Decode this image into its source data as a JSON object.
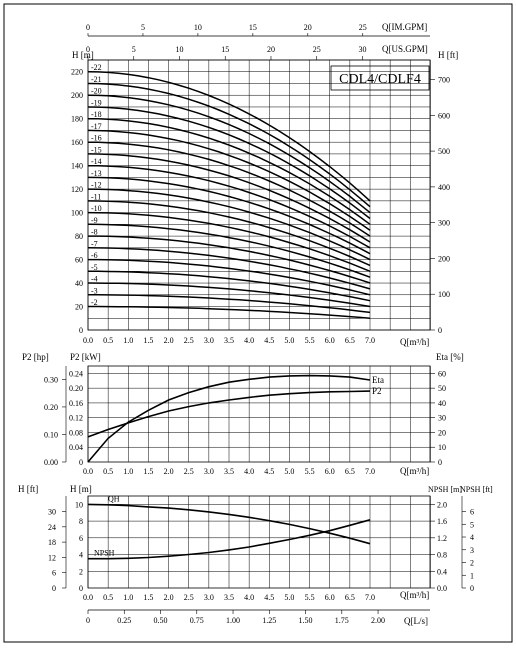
{
  "top_axes": {
    "im_gpm": {
      "label": "Q[IM.GPM]",
      "ticks": [
        0,
        5,
        10,
        15,
        20,
        25
      ]
    },
    "us_gpm": {
      "label": "Q[US.GPM]",
      "ticks": [
        0,
        5,
        10,
        15,
        20,
        25,
        30
      ]
    }
  },
  "chart_data": [
    {
      "type": "line",
      "title": "CDL4/CDLF4",
      "xlabel": "Q[m³/h]",
      "ylabel": "H [m]",
      "y2label": "H [ft]",
      "xlim": [
        0,
        7.0
      ],
      "ylim": [
        0,
        230
      ],
      "x_ticks": [
        "0.0",
        "0.5",
        "1.0",
        "1.5",
        "2.0",
        "2.5",
        "3.0",
        "3.5",
        "4.0",
        "4.5",
        "5.0",
        "5.5",
        "6.0",
        "6.5",
        "7.0"
      ],
      "y_ticks": [
        0,
        20,
        40,
        60,
        80,
        100,
        120,
        140,
        160,
        180,
        200,
        220
      ],
      "y2_ticks": [
        0,
        100,
        200,
        300,
        400,
        500,
        600,
        700
      ],
      "grid": true,
      "curve_form": {
        "x": [
          0,
          7.0
        ],
        "head_fraction_at_end": [
          1.0,
          0.5
        ],
        "shape": "quadratic"
      },
      "series": [
        {
          "name": "-2",
          "h0": 20
        },
        {
          "name": "-3",
          "h0": 30
        },
        {
          "name": "-4",
          "h0": 40
        },
        {
          "name": "-5",
          "h0": 50
        },
        {
          "name": "-6",
          "h0": 60
        },
        {
          "name": "-7",
          "h0": 70
        },
        {
          "name": "-8",
          "h0": 80
        },
        {
          "name": "-9",
          "h0": 90
        },
        {
          "name": "-10",
          "h0": 100
        },
        {
          "name": "-11",
          "h0": 110
        },
        {
          "name": "-12",
          "h0": 120
        },
        {
          "name": "-13",
          "h0": 130
        },
        {
          "name": "-14",
          "h0": 140
        },
        {
          "name": "-15",
          "h0": 150
        },
        {
          "name": "-16",
          "h0": 160
        },
        {
          "name": "-17",
          "h0": 170
        },
        {
          "name": "-18",
          "h0": 180
        },
        {
          "name": "-19",
          "h0": 190
        },
        {
          "name": "-20",
          "h0": 200
        },
        {
          "name": "-21",
          "h0": 210
        },
        {
          "name": "-22",
          "h0": 220
        }
      ]
    },
    {
      "type": "line",
      "xlabel": "Q[m³/h]",
      "ylabel_hp": "P2 [hp]",
      "ylabel_kw": "P2 [kW]",
      "y2label": "Eta [%]",
      "xlim": [
        0,
        7.0
      ],
      "ylim_kw": [
        0,
        0.26
      ],
      "ylim_eta": [
        0,
        65
      ],
      "x_ticks": [
        "0.0",
        "0.5",
        "1.0",
        "1.5",
        "2.0",
        "2.5",
        "3.0",
        "3.5",
        "4.0",
        "4.5",
        "5.0",
        "5.5",
        "6.0",
        "6.5",
        "7.0"
      ],
      "hp_ticks": [
        "0.00",
        "0.10",
        "0.20",
        "0.30"
      ],
      "kw_ticks": [
        "0",
        "0.04",
        "0.08",
        "0.12",
        "0.16",
        "0.20",
        "0.24"
      ],
      "eta_ticks": [
        "0",
        "10",
        "20",
        "30",
        "40",
        "50",
        "60"
      ],
      "grid": true,
      "series": [
        {
          "name": "Eta",
          "axis": "eta",
          "x": [
            0,
            0.5,
            1.0,
            1.5,
            2.0,
            2.5,
            3.0,
            3.5,
            4.0,
            4.5,
            5.0,
            5.5,
            6.0,
            6.5,
            7.0
          ],
          "y": [
            0,
            16,
            27,
            35,
            42,
            47,
            51,
            54,
            56,
            57.5,
            58.3,
            58.5,
            58.3,
            57.5,
            55.5
          ]
        },
        {
          "name": "P2",
          "axis": "kw",
          "x": [
            0,
            0.5,
            1.0,
            1.5,
            2.0,
            2.5,
            3.0,
            3.5,
            4.0,
            4.5,
            5.0,
            5.5,
            6.0,
            6.5,
            7.0
          ],
          "y": [
            0.068,
            0.088,
            0.106,
            0.123,
            0.138,
            0.15,
            0.16,
            0.168,
            0.175,
            0.181,
            0.185,
            0.188,
            0.19,
            0.191,
            0.192
          ]
        }
      ]
    },
    {
      "type": "line",
      "xlabel": "Q[m³/h]",
      "x2label": "Q[L/s]",
      "ylabel_ft": "H [ft]",
      "ylabel_m": "H [m]",
      "y2label_m": "NPSH [m]",
      "y2label_ft": "NPSH [ft]",
      "xlim": [
        0,
        7.0
      ],
      "ylim_m": [
        0,
        11
      ],
      "ylim_npsh": [
        0,
        2.2
      ],
      "x_ticks": [
        "0.0",
        "0.5",
        "1.0",
        "1.5",
        "2.0",
        "2.5",
        "3.0",
        "3.5",
        "4.0",
        "4.5",
        "5.0",
        "5.5",
        "6.0",
        "6.5",
        "7.0"
      ],
      "ls_ticks": [
        "0",
        "0.25",
        "0.50",
        "0.75",
        "1.00",
        "1.25",
        "1.50",
        "1.75",
        "2.00"
      ],
      "ft_ticks": [
        "0",
        "6",
        "12",
        "18",
        "24",
        "30"
      ],
      "m_ticks": [
        "0",
        "2",
        "4",
        "6",
        "8",
        "10"
      ],
      "npsh_m_ticks": [
        "0.0",
        "0.4",
        "0.8",
        "1.2",
        "1.6",
        "2.0"
      ],
      "npsh_ft_ticks": [
        "0",
        "1",
        "2",
        "3",
        "4",
        "5",
        "6"
      ],
      "grid": true,
      "series": [
        {
          "name": "QH",
          "axis": "m",
          "x": [
            0,
            0.5,
            1.0,
            1.5,
            2.0,
            2.5,
            3.0,
            3.5,
            4.0,
            4.5,
            5.0,
            5.5,
            6.0,
            6.5,
            7.0
          ],
          "y": [
            10.0,
            9.95,
            9.85,
            9.7,
            9.55,
            9.35,
            9.1,
            8.8,
            8.45,
            8.05,
            7.6,
            7.1,
            6.55,
            5.95,
            5.3
          ]
        },
        {
          "name": "NPSH",
          "axis": "npsh",
          "x": [
            0,
            0.5,
            1.0,
            1.5,
            2.0,
            2.5,
            3.0,
            3.5,
            4.0,
            4.5,
            5.0,
            5.5,
            6.0,
            6.5,
            7.0
          ],
          "y": [
            0.7,
            0.7,
            0.71,
            0.73,
            0.76,
            0.8,
            0.85,
            0.91,
            0.98,
            1.07,
            1.16,
            1.26,
            1.37,
            1.5,
            1.63
          ]
        }
      ]
    }
  ]
}
